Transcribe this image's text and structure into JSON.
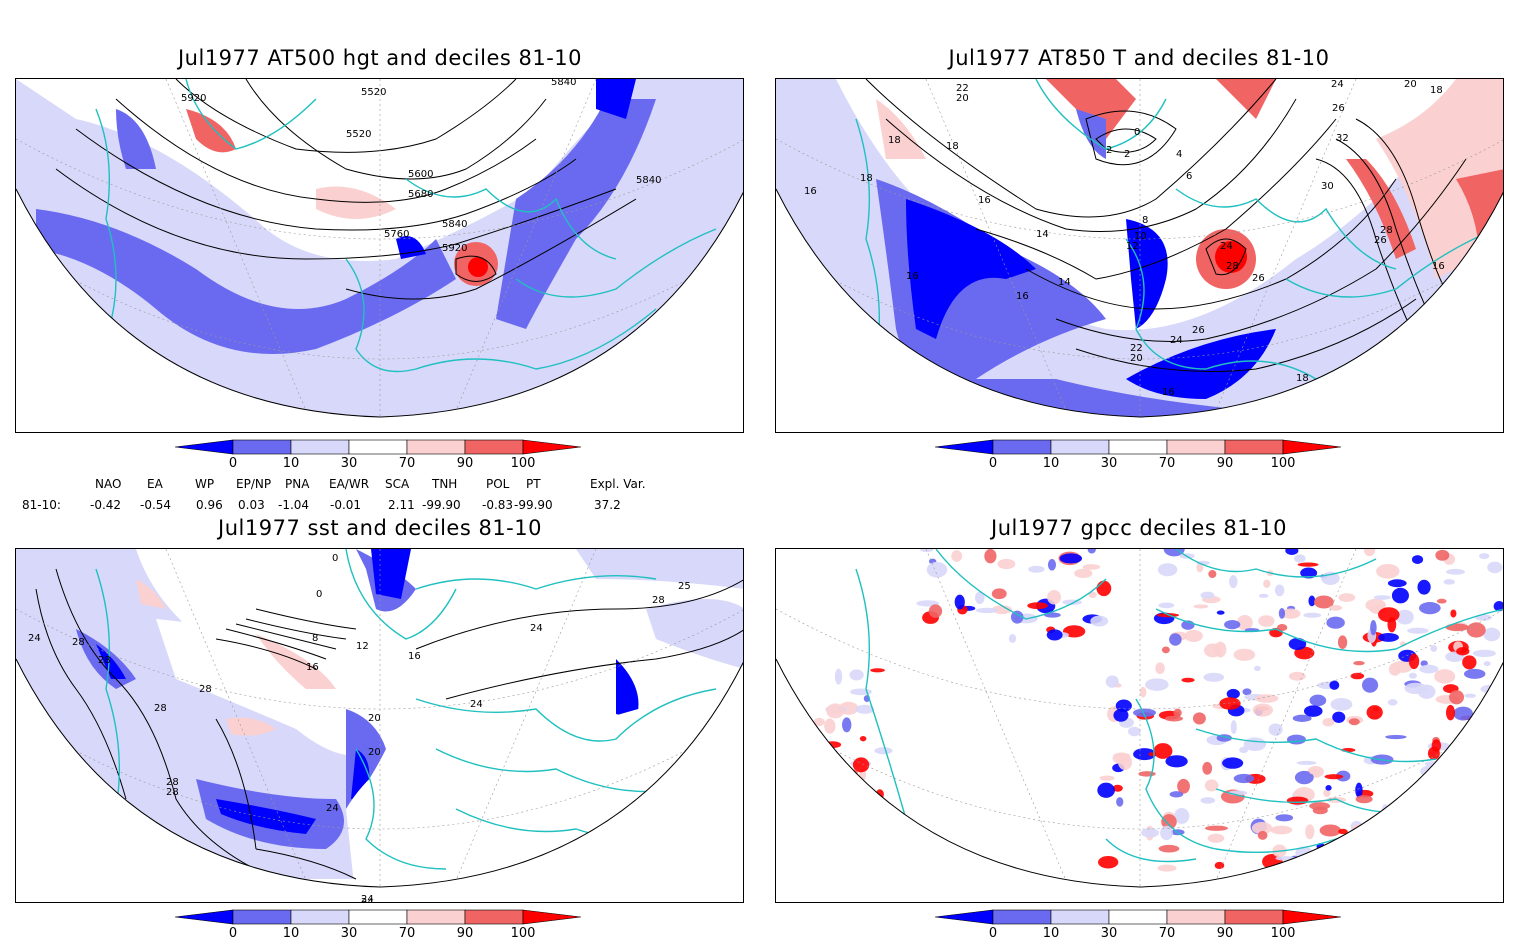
{
  "panels": [
    {
      "title": "Jul1977 AT500 hgt and deciles 81-10",
      "contour_labels": [
        "5920",
        "5520",
        "5520",
        "5600",
        "5680",
        "5760",
        "5840",
        "5920",
        "5840",
        "5840"
      ]
    },
    {
      "title": "Jul1977 AT850 T and deciles 81-10",
      "contour_labels": [
        "22",
        "20",
        "18",
        "18",
        "16",
        "18",
        "16",
        "14",
        "16",
        "14",
        "16",
        "12",
        "10",
        "8",
        "0",
        "2",
        "2",
        "4",
        "6",
        "24",
        "28",
        "26",
        "26",
        "24",
        "22",
        "20",
        "16",
        "18",
        "30",
        "32",
        "28",
        "26",
        "24",
        "20",
        "18",
        "16",
        "26"
      ]
    },
    {
      "title": "Jul1977 sst and deciles 81-10",
      "contour_labels": [
        "24",
        "28",
        "28",
        "28",
        "28",
        "28",
        "8",
        "12",
        "16",
        "16",
        "20",
        "20",
        "24",
        "24",
        "24",
        "28",
        "28",
        "25",
        "0",
        "0",
        "24",
        "24"
      ]
    },
    {
      "title": "Jul1977 gpcc deciles 81-10",
      "contour_labels": []
    }
  ],
  "colorbar": {
    "ticks": [
      "0",
      "10",
      "30",
      "70",
      "90",
      "100"
    ],
    "colors": [
      "#0000ff",
      "#6a6af0",
      "#d8d8fa",
      "#ffffff",
      "#fbd0d0",
      "#f06464",
      "#ff0000"
    ]
  },
  "indices": {
    "header": [
      "NAO",
      "EA",
      "WP",
      "EP/NP",
      "PNA",
      "EA/WR",
      "SCA",
      "TNH",
      "POL",
      "PT",
      "Expl. Var."
    ],
    "row_label": "81-10:",
    "values": [
      "-0.42",
      "-0.54",
      "0.96",
      "0.03",
      "-1.04",
      "-0.01",
      "2.11",
      "-99.90",
      "-0.83",
      "-99.90",
      "37.2"
    ]
  }
}
